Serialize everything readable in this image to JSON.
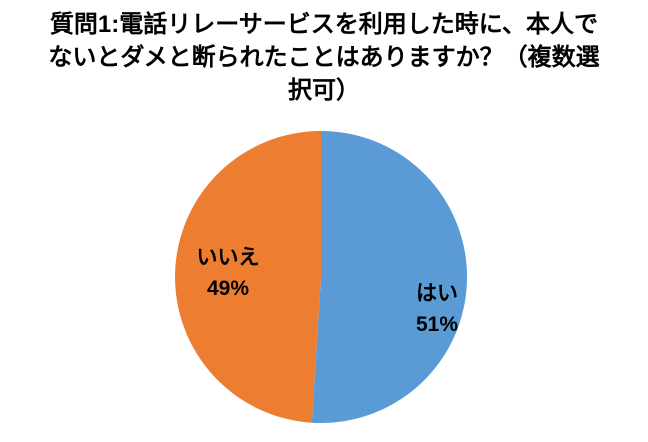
{
  "chart_data": {
    "type": "pie",
    "title": "質問1:電話リレーサービスを利用した時に、本人でないとダメと断られたことはありますか？（複数選択可）",
    "title_lines": [
      "質問1:電話リレーサービスを利用した時に、本人で",
      "ないとダメと断られたことはありますか？（複数選",
      "択可）"
    ],
    "slices": [
      {
        "label": "はい",
        "value": 51,
        "pct_label": "51%",
        "color": "#5B9BD5"
      },
      {
        "label": "いいえ",
        "value": 49,
        "pct_label": "49%",
        "color": "#ED7D31"
      }
    ],
    "start": "top",
    "direction": "clockwise",
    "legend": "none",
    "labels_inside": true,
    "background": "#FFFFFF",
    "label_text_color": "#000000"
  }
}
